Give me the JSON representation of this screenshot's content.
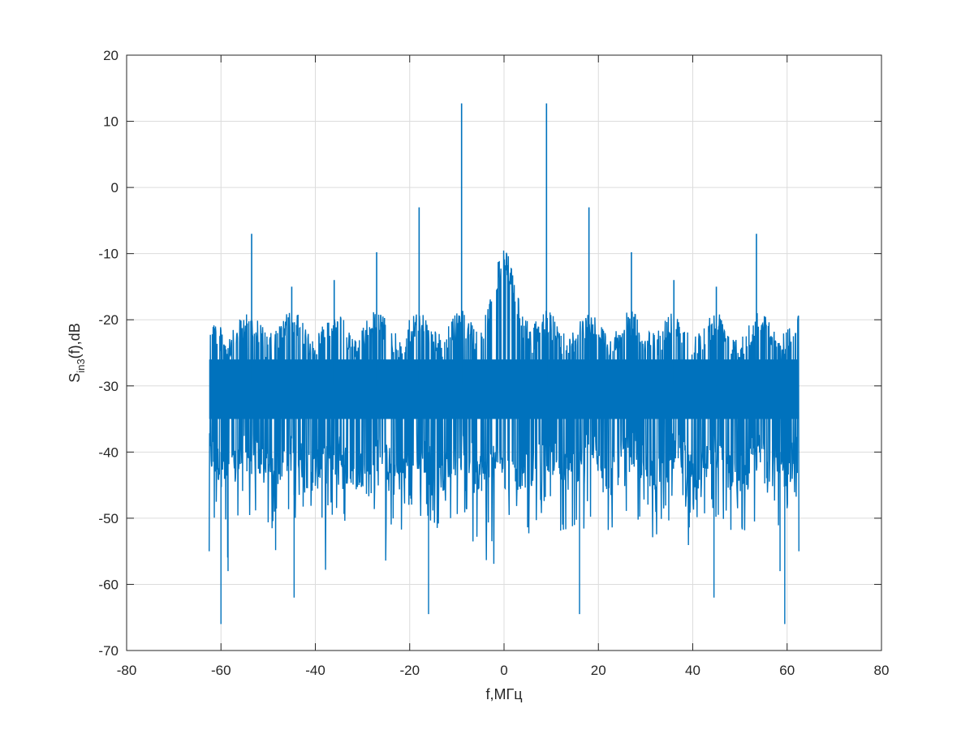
{
  "chart_data": {
    "type": "line",
    "title": "",
    "xlabel": "f,МГц",
    "ylabel": {
      "base": "S",
      "subscript": "in3",
      "rest": "(f),dB"
    },
    "xlim": [
      -80,
      80
    ],
    "ylim": [
      -70,
      20
    ],
    "xticks": [
      -80,
      -60,
      -40,
      -20,
      0,
      20,
      40,
      60,
      80
    ],
    "yticks": [
      20,
      10,
      0,
      -10,
      -20,
      -30,
      -40,
      -50,
      -60,
      -70
    ],
    "grid": true,
    "box": true,
    "series": [
      {
        "color": "#0072BD",
        "x_range": [
          -62.5,
          62.5
        ],
        "envelope": {
          "top_baseline_db": -22,
          "bottom_baseline_db": -46,
          "center_peak_db": -12,
          "deep_dips_db": [
            -66,
            -64.5,
            -64.5,
            -62,
            -62,
            -58,
            -58,
            -66
          ]
        },
        "peaks": [
          {
            "x": -9,
            "y": 12.7
          },
          {
            "x": 9,
            "y": 12.7
          },
          {
            "x": -18,
            "y": -3
          },
          {
            "x": 18,
            "y": -3
          },
          {
            "x": -27,
            "y": -9.8
          },
          {
            "x": 27,
            "y": -9.8
          },
          {
            "x": -53.5,
            "y": -7
          },
          {
            "x": 53.5,
            "y": -7
          },
          {
            "x": -36,
            "y": -14
          },
          {
            "x": 36,
            "y": -14
          },
          {
            "x": -45,
            "y": -15
          },
          {
            "x": 45,
            "y": -15
          }
        ]
      }
    ]
  }
}
